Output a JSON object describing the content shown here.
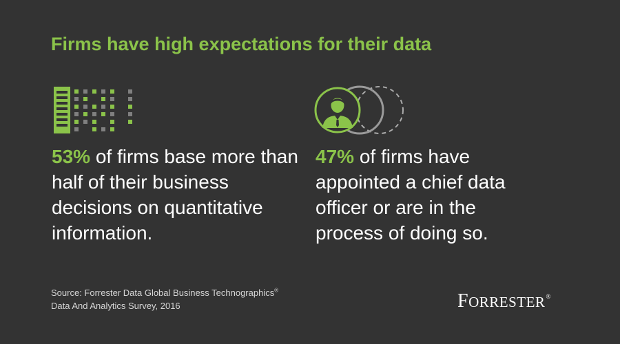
{
  "title": "Firms have high expectations for their data",
  "stats": [
    {
      "percent": "53%",
      "text": " of firms base more than half of their business decisions on quantitative information.",
      "icon": "building-icon",
      "accent": "#8bc34a"
    },
    {
      "percent": "47%",
      "text": " of firms have appointed a chief data officer or are in the process of doing so.",
      "icon": "officer-icon",
      "accent": "#8bc34a"
    }
  ],
  "source": {
    "line1": "Source: Forrester Data Global Business Technographics",
    "registered": "®",
    "line2": "Data And Analytics Survey, 2016"
  },
  "logo": {
    "initial_f": "F",
    "small_caps": "ORRESTER",
    "registered": "®"
  },
  "colors": {
    "background": "#333333",
    "accent": "#8bc34a",
    "text": "#ffffff",
    "muted": "#d6d6d6",
    "gray_dot": "#808080"
  }
}
